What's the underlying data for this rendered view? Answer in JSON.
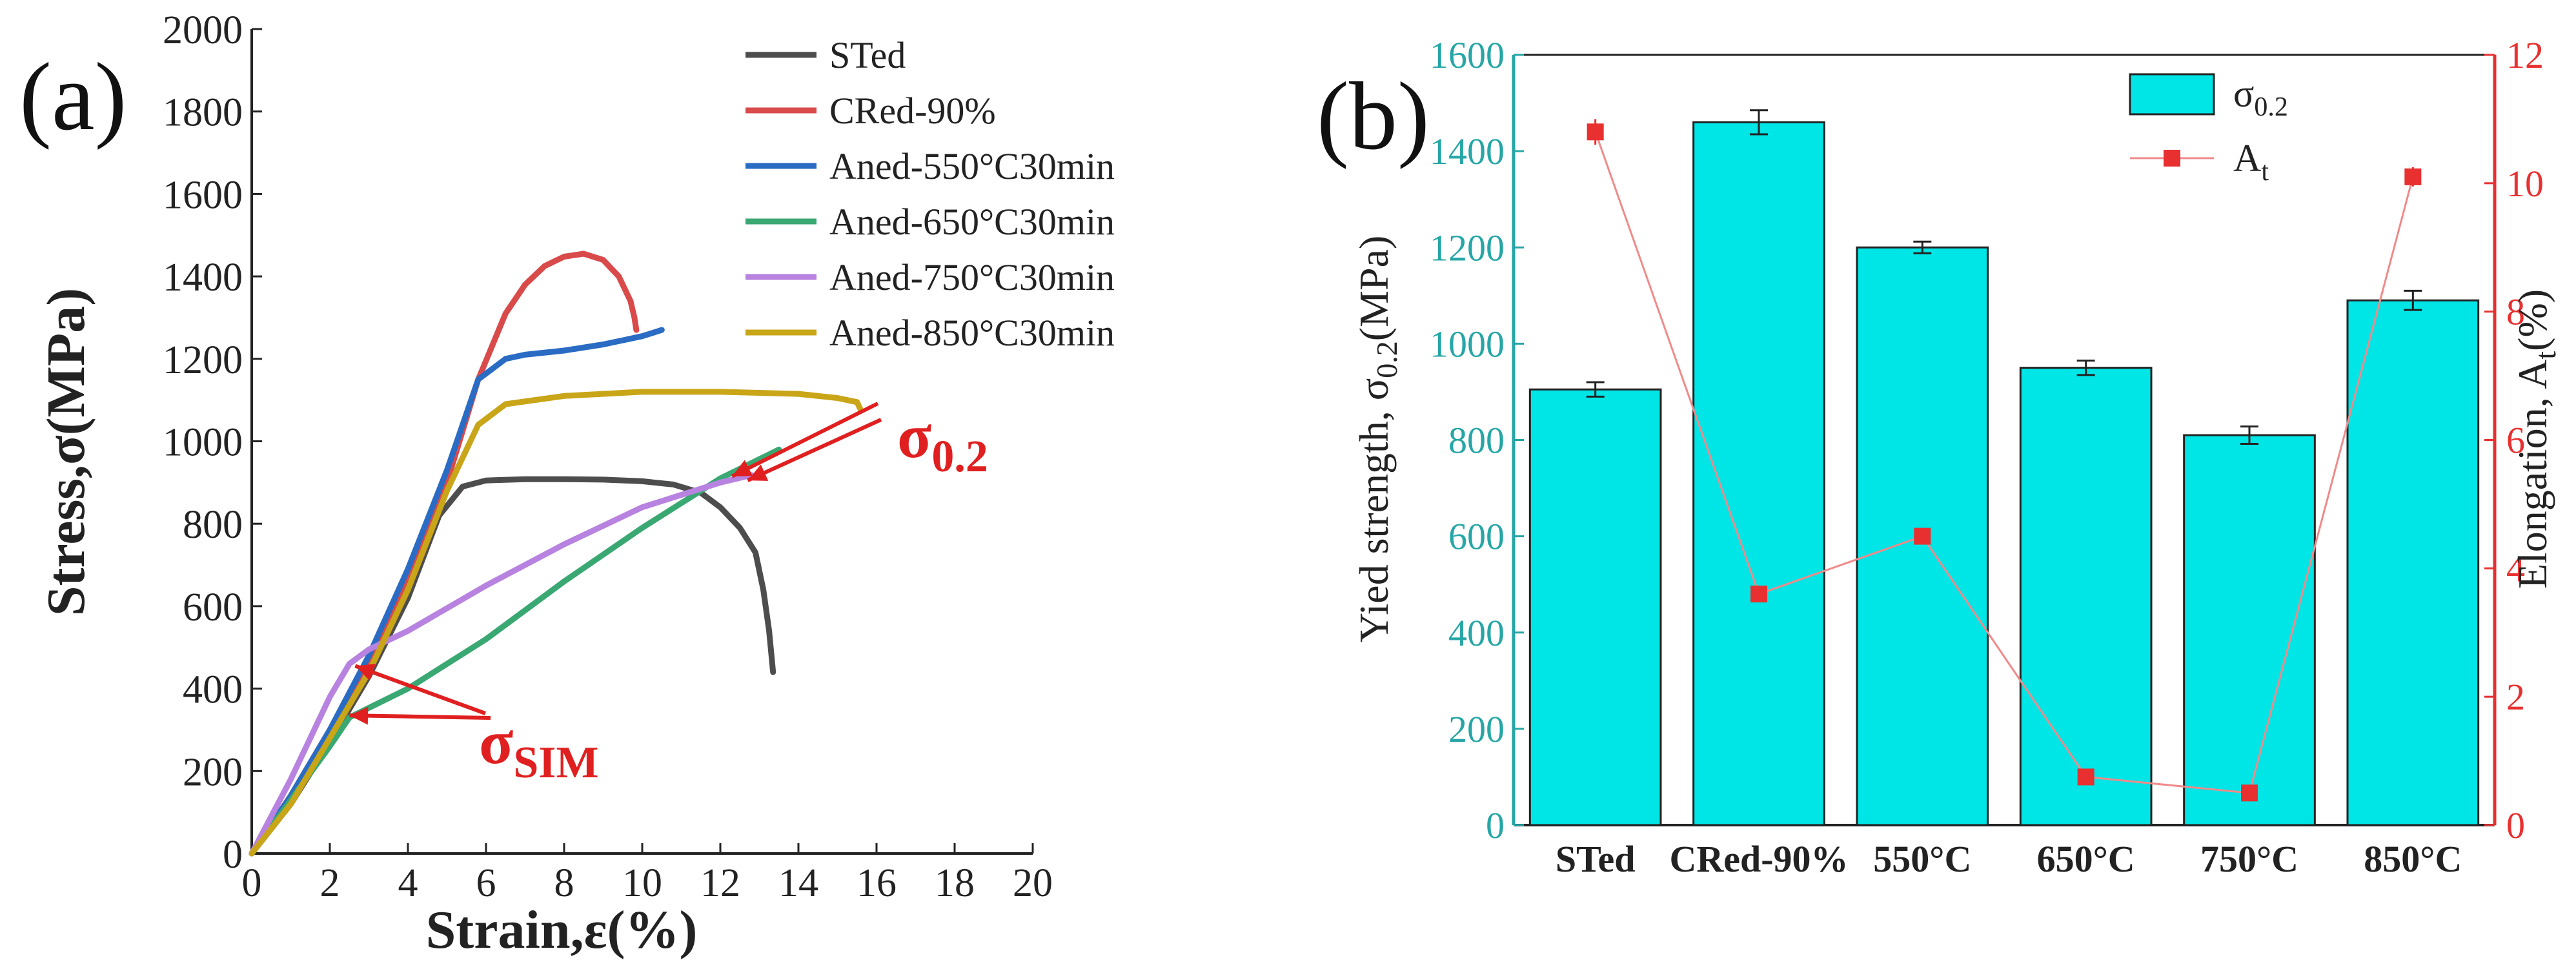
{
  "chart_data": [
    {
      "panel_label": "(a)",
      "type": "line",
      "xlabel": "Strain,ε(%)",
      "ylabel": "Stress,σ(MPa)",
      "xlim": [
        0,
        20
      ],
      "ylim": [
        0,
        2000
      ],
      "xticks": [
        0,
        2,
        4,
        6,
        8,
        10,
        12,
        14,
        16,
        18,
        20
      ],
      "yticks": [
        0,
        200,
        400,
        600,
        800,
        1000,
        1200,
        1400,
        1600,
        1800,
        2000
      ],
      "legend_position": "top-right",
      "series": [
        {
          "name": "STed",
          "color": "#4d4d4d",
          "x": [
            0,
            1,
            2,
            3,
            4,
            4.8,
            5.4,
            6,
            7,
            8,
            9,
            10,
            10.8,
            11.5,
            12,
            12.5,
            12.9,
            13.1,
            13.25,
            13.35
          ],
          "y": [
            0,
            120,
            270,
            430,
            620,
            820,
            890,
            905,
            908,
            908,
            907,
            903,
            895,
            875,
            840,
            790,
            730,
            640,
            540,
            440
          ]
        },
        {
          "name": "CRed-90%",
          "color": "#d94a4a",
          "x": [
            0,
            1,
            2,
            3,
            4,
            5,
            5.8,
            6.5,
            7,
            7.5,
            8,
            8.5,
            9,
            9.4,
            9.7,
            9.8,
            9.85
          ],
          "y": [
            0,
            140,
            300,
            470,
            670,
            900,
            1150,
            1310,
            1380,
            1425,
            1448,
            1455,
            1440,
            1400,
            1340,
            1300,
            1270
          ]
        },
        {
          "name": "Aned-550°C30min",
          "color": "#2a6bc4",
          "x": [
            0,
            1,
            2,
            3,
            4,
            5,
            5.8,
            6.5,
            7,
            8,
            9,
            9.5,
            10,
            10.5
          ],
          "y": [
            0,
            140,
            300,
            480,
            690,
            930,
            1150,
            1200,
            1210,
            1220,
            1235,
            1245,
            1255,
            1270
          ]
        },
        {
          "name": "Aned-650°C30min",
          "color": "#3aa872",
          "x": [
            0,
            1,
            2,
            2.5,
            4,
            6,
            8,
            10,
            12,
            13.5
          ],
          "y": [
            0,
            130,
            260,
            330,
            400,
            520,
            660,
            790,
            910,
            980
          ]
        },
        {
          "name": "Aned-750°C30min",
          "color": "#b882e0",
          "x": [
            0,
            1,
            2,
            2.5,
            3,
            4,
            6,
            8,
            10,
            12,
            12.8
          ],
          "y": [
            0,
            180,
            380,
            460,
            495,
            540,
            650,
            750,
            840,
            900,
            918
          ]
        },
        {
          "name": "Aned-850°C30min",
          "color": "#c9a518",
          "x": [
            0,
            1,
            2,
            3,
            4,
            5,
            5.8,
            6.5,
            8,
            10,
            12,
            14,
            15,
            15.5,
            15.6
          ],
          "y": [
            0,
            120,
            280,
            440,
            640,
            880,
            1040,
            1090,
            1110,
            1120,
            1120,
            1115,
            1105,
            1095,
            1075
          ]
        }
      ],
      "annotations": [
        {
          "label": "σ",
          "subscript": "0.2"
        },
        {
          "label": "σ",
          "subscript": "SIM"
        }
      ]
    },
    {
      "panel_label": "(b)",
      "type": "bar",
      "categories": [
        "STed",
        "CRed-90%",
        "550°C",
        "650°C",
        "750°C",
        "850°C"
      ],
      "series": [
        {
          "name": "σ",
          "name_sub": "0.2",
          "axis": "left",
          "color": "#00e5e5",
          "values": [
            905,
            1460,
            1200,
            950,
            810,
            1090
          ],
          "errors": [
            15,
            25,
            12,
            15,
            18,
            20
          ]
        },
        {
          "name": "A",
          "name_sub": "t",
          "axis": "right",
          "color": "#e83030",
          "values": [
            10.8,
            3.6,
            4.5,
            0.75,
            0.5,
            10.1
          ],
          "errors": [
            0.2,
            0.12,
            0.1,
            0.12,
            0.08,
            0.15
          ]
        }
      ],
      "ylabel_left": "Yied strength, σ",
      "ylabel_left_sub": "0.2",
      "ylabel_left_tail": "(MPa)",
      "ylabel_right": "Elongation, A",
      "ylabel_right_sub": "t",
      "ylabel_right_tail": "(%)",
      "ylim_left": [
        0,
        1600
      ],
      "ylim_right": [
        0,
        12
      ],
      "yticks_left": [
        0,
        200,
        400,
        600,
        800,
        1000,
        1200,
        1400,
        1600
      ],
      "yticks_right": [
        0,
        2,
        4,
        6,
        8,
        10,
        12
      ],
      "left_axis_color": "#26a6a6",
      "right_axis_color": "#e83030",
      "legend_position": "top-right"
    }
  ]
}
